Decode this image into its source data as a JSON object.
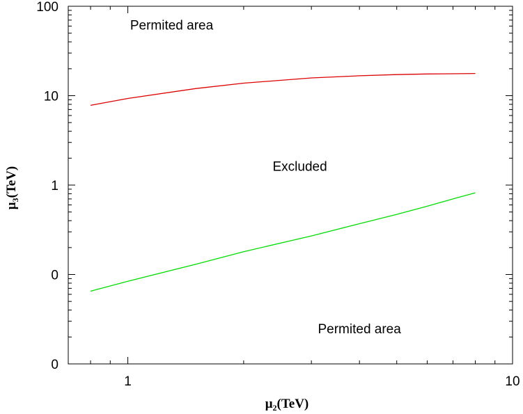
{
  "chart_data": {
    "type": "line",
    "xscale": "log",
    "yscale": "log",
    "xlim": [
      0.7,
      10
    ],
    "ylim": [
      0.01,
      100
    ],
    "x_ticks": [
      {
        "value": 1,
        "label": "1"
      },
      {
        "value": 10,
        "label": "10"
      }
    ],
    "y_ticks": [
      {
        "value": 0.01,
        "label": "0"
      },
      {
        "value": 0.1,
        "label": "0"
      },
      {
        "value": 1,
        "label": "1"
      },
      {
        "value": 10,
        "label": "10"
      },
      {
        "value": 100,
        "label": "100"
      }
    ],
    "xlabel": {
      "base": "μ",
      "sub": "2",
      "rest": "(TeV)"
    },
    "ylabel": {
      "base": "μ",
      "sub": "3",
      "rest": "(TeV)"
    },
    "grid": false,
    "series": [
      {
        "color": "#dd0000",
        "x": [
          0.8,
          1.0,
          1.5,
          2.0,
          3.0,
          4.0,
          5.0,
          6.0,
          7.0,
          8.0
        ],
        "y": [
          7.8,
          9.3,
          12.0,
          13.8,
          15.8,
          16.7,
          17.2,
          17.5,
          17.6,
          17.7
        ]
      },
      {
        "color": "#00dd00",
        "x": [
          0.8,
          1.0,
          1.5,
          2.0,
          3.0,
          4.0,
          5.0,
          6.0,
          7.0,
          8.0
        ],
        "y": [
          0.065,
          0.084,
          0.13,
          0.18,
          0.27,
          0.37,
          0.47,
          0.58,
          0.7,
          0.82
        ]
      }
    ],
    "annotations": [
      {
        "text": "Permited area",
        "x": 1.3,
        "y": 55
      },
      {
        "text": "Excluded",
        "x": 2.8,
        "y": 1.45
      },
      {
        "text": "Permited area",
        "x": 4.0,
        "y": 0.022
      }
    ]
  }
}
